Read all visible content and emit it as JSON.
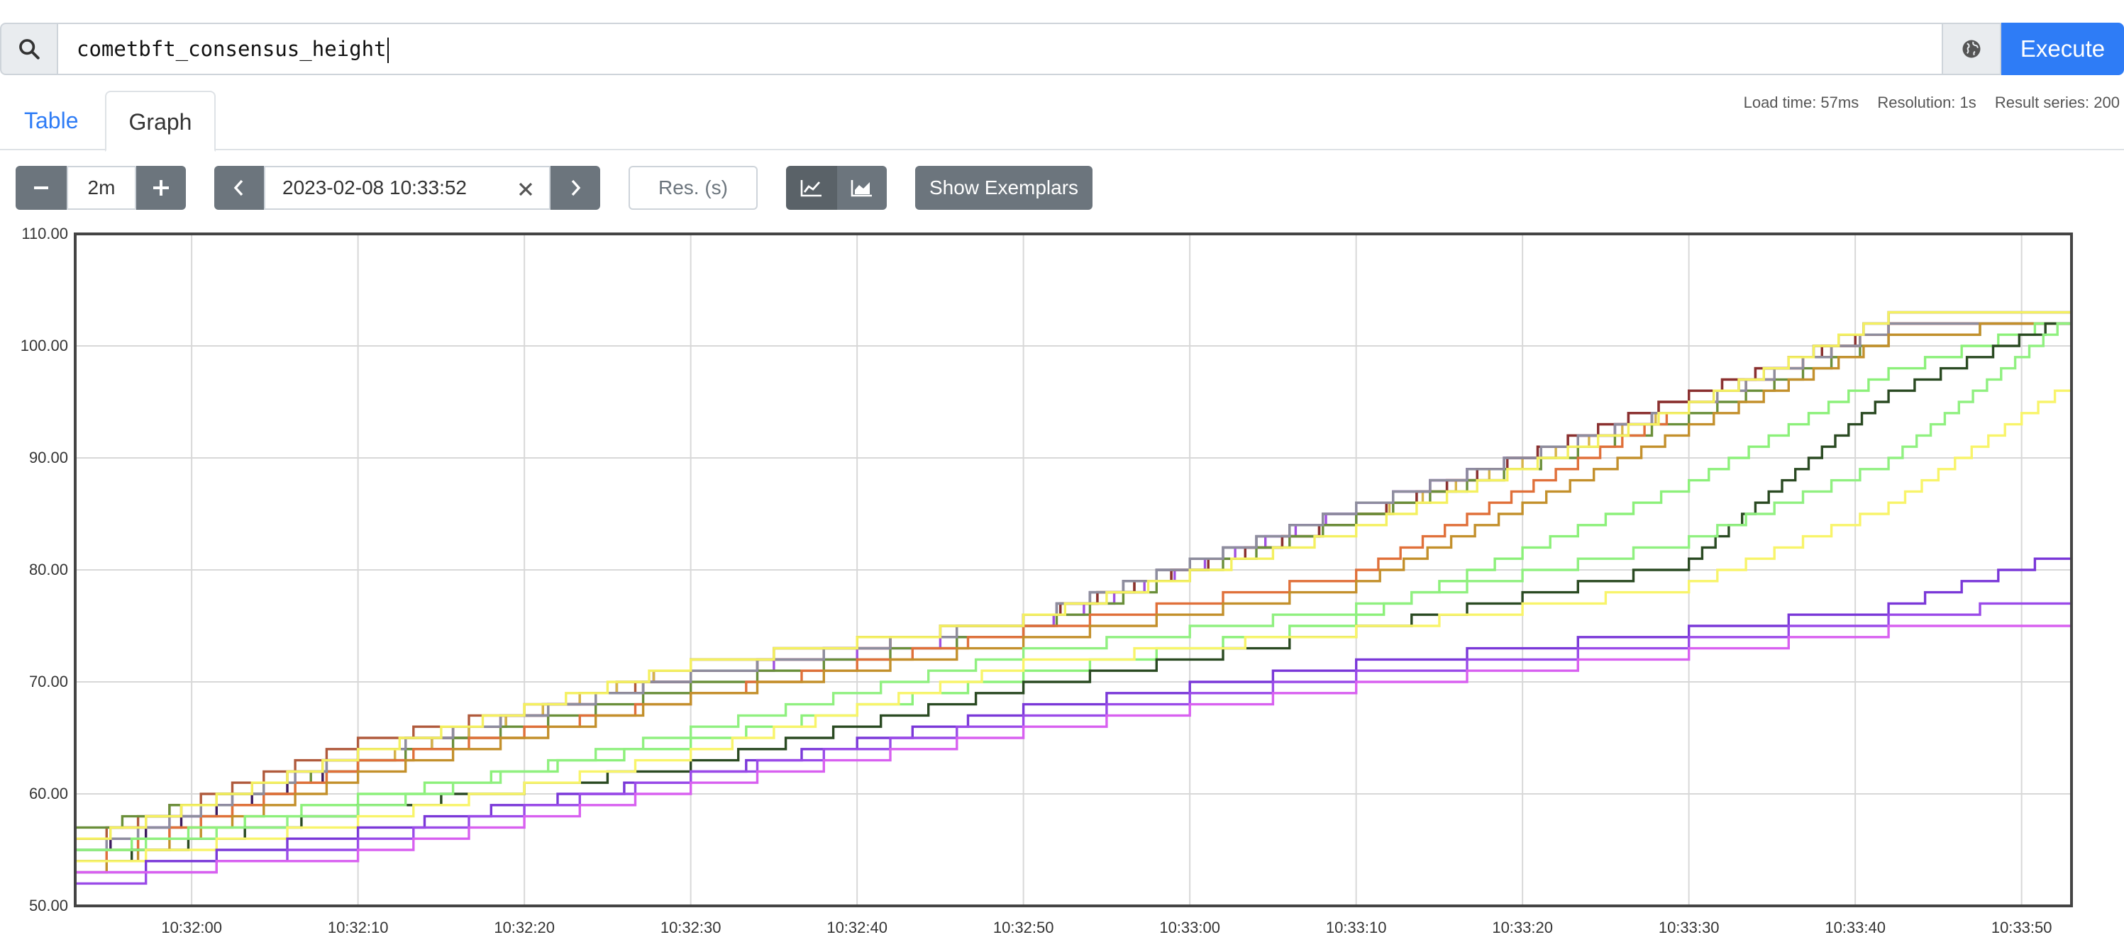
{
  "query": {
    "value": "cometbft_consensus_height",
    "search_icon": "search-icon",
    "globe_icon": "metrics-explorer-icon",
    "execute_label": "Execute"
  },
  "tabs": {
    "table_label": "Table",
    "graph_label": "Graph",
    "active": "Graph"
  },
  "stats": {
    "load_time": "Load time: 57ms",
    "resolution": "Resolution: 1s",
    "result_series": "Result series: 200"
  },
  "controls": {
    "range_value": "2m",
    "end_time": "2023-02-08 10:33:52",
    "resolution_placeholder": "Res. (s)",
    "exemplars_label": "Show Exemplars",
    "stacked": false
  },
  "colors": {
    "accent": "#2e7cf6",
    "button_gray": "#6c757d",
    "button_active": "#5a6268"
  },
  "chart_data": {
    "type": "line",
    "ylim": [
      50,
      110
    ],
    "yticks": [
      "50.00",
      "60.00",
      "70.00",
      "80.00",
      "90.00",
      "100.00",
      "110.00"
    ],
    "xlim": [
      "10:31:53",
      "10:33:53"
    ],
    "xticks": [
      "10:32:00",
      "10:32:10",
      "10:32:20",
      "10:32:30",
      "10:32:40",
      "10:32:50",
      "10:33:00",
      "10:33:10",
      "10:33:20",
      "10:33:30",
      "10:33:40",
      "10:33:50"
    ],
    "grid": true,
    "series": [
      {
        "color": "#3b1a5e",
        "x": [
          "10:31:53",
          "10:32:10",
          "10:32:30",
          "10:32:50",
          "10:33:10",
          "10:33:30",
          "10:33:42",
          "10:33:53"
        ],
        "values": [
          55,
          63,
          72,
          76,
          86,
          95,
          103,
          103
        ]
      },
      {
        "color": "#b05a3c",
        "x": [
          "10:31:53",
          "10:32:10",
          "10:32:30",
          "10:32:50",
          "10:33:10",
          "10:33:30",
          "10:33:42",
          "10:33:53"
        ],
        "values": [
          56,
          65,
          71,
          76,
          85,
          96,
          102,
          103
        ]
      },
      {
        "color": "#d7b44a",
        "x": [
          "10:31:53",
          "10:32:10",
          "10:32:30",
          "10:32:50",
          "10:33:10",
          "10:33:30",
          "10:33:42",
          "10:33:53"
        ],
        "values": [
          54,
          63,
          72,
          76,
          85,
          95,
          102,
          103
        ]
      },
      {
        "color": "#a050e0",
        "x": [
          "10:31:53",
          "10:32:10",
          "10:32:30",
          "10:32:50",
          "10:33:10",
          "10:33:30",
          "10:33:42",
          "10:33:53"
        ],
        "values": [
          55,
          64,
          71,
          75,
          86,
          95,
          102,
          103
        ]
      },
      {
        "color": "#8a3030",
        "x": [
          "10:31:53",
          "10:32:10",
          "10:32:30",
          "10:32:50",
          "10:33:10",
          "10:33:30",
          "10:33:42",
          "10:33:53"
        ],
        "values": [
          56,
          64,
          71,
          76,
          85,
          96,
          102,
          103
        ]
      },
      {
        "color": "#6a8f3a",
        "x": [
          "10:31:53",
          "10:32:10",
          "10:32:30",
          "10:32:50",
          "10:33:10",
          "10:33:30",
          "10:33:42",
          "10:33:53"
        ],
        "values": [
          57,
          63,
          70,
          75,
          85,
          94,
          101,
          103
        ]
      },
      {
        "color": "#e0703a",
        "x": [
          "10:31:53",
          "10:32:10",
          "10:32:30",
          "10:32:50",
          "10:33:10",
          "10:33:30",
          "10:33:42",
          "10:33:53"
        ],
        "values": [
          54,
          63,
          69,
          75,
          80,
          95,
          102,
          103
        ]
      },
      {
        "color": "#8e8e9e",
        "x": [
          "10:31:53",
          "10:32:10",
          "10:32:30",
          "10:32:50",
          "10:33:10",
          "10:33:30",
          "10:33:42",
          "10:33:53"
        ],
        "values": [
          55,
          64,
          71,
          76,
          86,
          95,
          102,
          103
        ]
      },
      {
        "color": "#c3902c",
        "x": [
          "10:31:53",
          "10:32:10",
          "10:32:30",
          "10:32:50",
          "10:33:10",
          "10:33:30",
          "10:33:42",
          "10:33:53"
        ],
        "values": [
          53,
          62,
          69,
          74,
          79,
          93,
          101,
          103
        ]
      },
      {
        "color": "#f4f060",
        "x": [
          "10:31:53",
          "10:32:10",
          "10:32:30",
          "10:32:50",
          "10:33:10",
          "10:33:30",
          "10:33:42",
          "10:33:53"
        ],
        "values": [
          56,
          64,
          72,
          76,
          84,
          95,
          103,
          103
        ]
      },
      {
        "color": "#8cf07a",
        "x": [
          "10:31:53",
          "10:32:10",
          "10:32:30",
          "10:32:50",
          "10:33:10",
          "10:33:30",
          "10:33:42",
          "10:33:53"
        ],
        "values": [
          55,
          60,
          65,
          71,
          76,
          88,
          98,
          103
        ]
      },
      {
        "color": "#2a4a22",
        "x": [
          "10:31:53",
          "10:32:10",
          "10:32:30",
          "10:32:50",
          "10:33:10",
          "10:33:30",
          "10:33:42",
          "10:33:53"
        ],
        "values": [
          54,
          59,
          63,
          70,
          75,
          81,
          96,
          103
        ]
      },
      {
        "color": "#90f080",
        "x": [
          "10:31:53",
          "10:32:10",
          "10:32:30",
          "10:32:50",
          "10:33:10",
          "10:33:30",
          "10:33:42",
          "10:33:53"
        ],
        "values": [
          55,
          59,
          66,
          73,
          77,
          83,
          90,
          103
        ]
      },
      {
        "color": "#f8f46a",
        "x": [
          "10:31:53",
          "10:32:10",
          "10:32:30",
          "10:32:50",
          "10:33:10",
          "10:33:30",
          "10:33:42",
          "10:33:53"
        ],
        "values": [
          54,
          58,
          64,
          72,
          75,
          79,
          86,
          97
        ]
      },
      {
        "color": "#7a38d8",
        "x": [
          "10:31:53",
          "10:32:10",
          "10:32:30",
          "10:32:50",
          "10:33:10",
          "10:33:30",
          "10:33:42",
          "10:33:53"
        ],
        "values": [
          53,
          57,
          62,
          68,
          72,
          75,
          77,
          82
        ]
      },
      {
        "color": "#9a4ae8",
        "x": [
          "10:31:53",
          "10:32:10",
          "10:32:30",
          "10:32:50",
          "10:33:10",
          "10:33:30",
          "10:33:42",
          "10:33:53"
        ],
        "values": [
          52,
          56,
          62,
          67,
          71,
          74,
          76,
          78
        ]
      },
      {
        "color": "#d860f0",
        "x": [
          "10:31:53",
          "10:32:10",
          "10:32:30",
          "10:32:50",
          "10:33:10",
          "10:33:30",
          "10:33:42",
          "10:33:53"
        ],
        "values": [
          53,
          55,
          61,
          66,
          70,
          73,
          75,
          76
        ]
      }
    ]
  }
}
